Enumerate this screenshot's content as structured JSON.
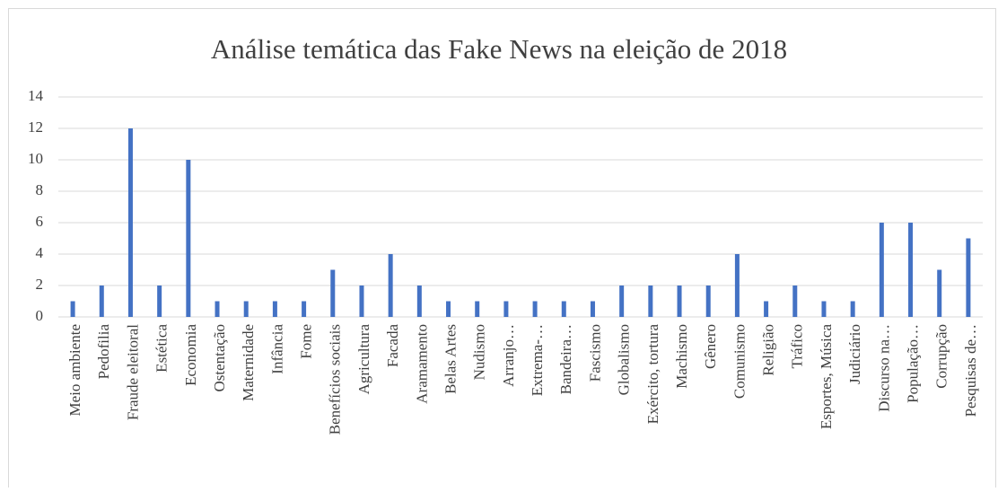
{
  "chart_data": {
    "type": "bar",
    "title": "Análise temática das Fake News na eleição de 2018",
    "categories": [
      "Meio ambiente",
      "Pedofilia",
      "Fraude eleitoral",
      "Estética",
      "Economia",
      "Ostentação",
      "Maternidade",
      "Infância",
      "Fome",
      "Benefícios sociais",
      "Agricultura",
      "Facada",
      "Aramamento",
      "Belas Artes",
      "Nudismo",
      "Arranjo…",
      "Extrema-…",
      "Bandeira…",
      "Fascismo",
      "Globalismo",
      "Exército, tortura",
      "Machismo",
      "Gênero",
      "Comunismo",
      "Religião",
      "Tráfico",
      "Esportes, Música",
      "Judiciário",
      "Discurso na…",
      "População…",
      "Corrupção",
      "Pesquisas de…"
    ],
    "values": [
      1,
      2,
      12,
      2,
      10,
      1,
      1,
      1,
      1,
      3,
      2,
      4,
      2,
      1,
      1,
      1,
      1,
      1,
      1,
      2,
      2,
      2,
      2,
      4,
      1,
      2,
      1,
      1,
      6,
      6,
      3,
      5
    ],
    "color": "#4472c4",
    "ylim": [
      0,
      14
    ],
    "yticks": [
      0,
      2,
      4,
      6,
      8,
      10,
      12,
      14
    ],
    "grid": true
  }
}
